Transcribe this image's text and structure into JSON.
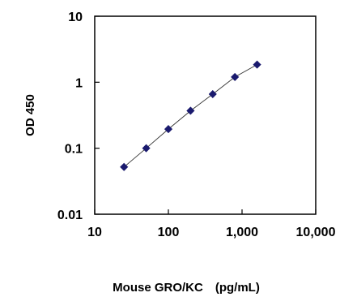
{
  "chart_data": {
    "type": "scatter",
    "title": "",
    "xlabel": "Mouse GRO/KC　(pg/mL)",
    "ylabel": "OD 450",
    "x_scale": "log",
    "y_scale": "log",
    "xlim": [
      10,
      10000
    ],
    "ylim": [
      0.01,
      10
    ],
    "x_ticks": [
      10,
      100,
      1000,
      10000
    ],
    "x_tick_labels": [
      "10",
      "100",
      "1,000",
      "10,000"
    ],
    "y_ticks": [
      0.01,
      0.1,
      1,
      10
    ],
    "y_tick_labels": [
      "0.01",
      "0.1",
      "1",
      "10"
    ],
    "grid": false,
    "legend": "none",
    "marker": "diamond",
    "marker_color": "#1a1a6e",
    "trend_line": "connecting line through points",
    "series": [
      {
        "x": [
          25,
          50,
          100,
          200,
          400,
          800,
          1600
        ],
        "y": [
          0.052,
          0.1,
          0.195,
          0.37,
          0.66,
          1.2,
          1.85
        ]
      }
    ]
  }
}
